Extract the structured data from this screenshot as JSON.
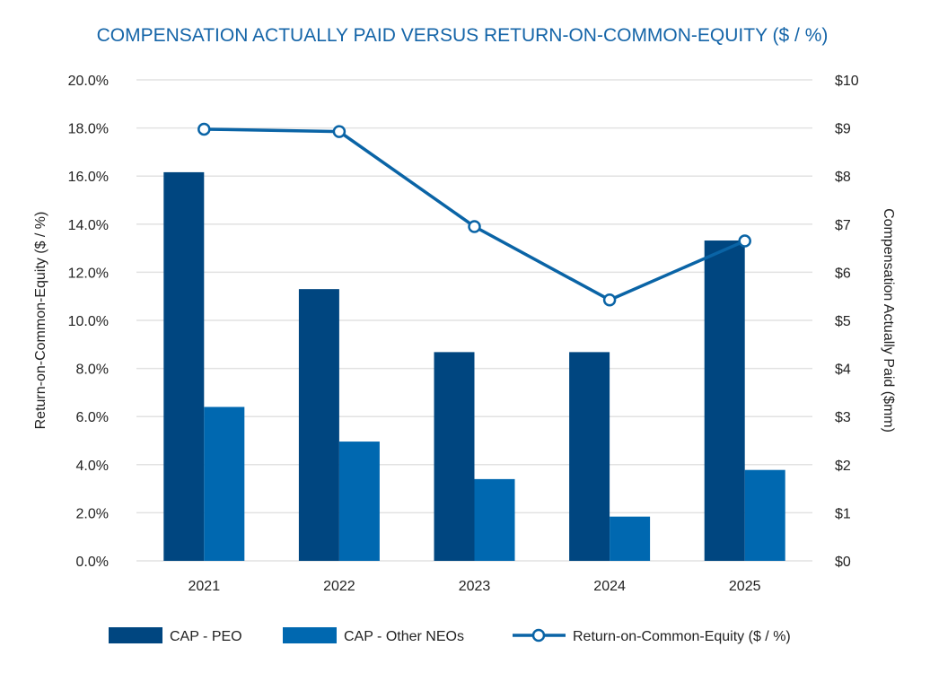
{
  "chart_data": {
    "type": "bar",
    "title": "COMPENSATION ACTUALLY PAID VERSUS RETURN-ON-COMMON-EQUITY ($ / %)",
    "categories": [
      "2021",
      "2022",
      "2023",
      "2024",
      "2025"
    ],
    "y_left": {
      "label": "Return-on-Common-Equity ($ / %)",
      "range": [
        0,
        20
      ],
      "ticks": [
        "0.0%",
        "2.0%",
        "4.0%",
        "6.0%",
        "8.0%",
        "10.0%",
        "12.0%",
        "14.0%",
        "16.0%",
        "18.0%",
        "20.0%"
      ]
    },
    "y_right": {
      "label": "Compensation Actually Paid ($mm)",
      "range": [
        0,
        10
      ],
      "ticks": [
        "$0",
        "$1",
        "$2",
        "$3",
        "$4",
        "$5",
        "$6",
        "$7",
        "$8",
        "$9",
        "$10"
      ]
    },
    "series": [
      {
        "name": "CAP - PEO",
        "type": "bar",
        "axis": "right",
        "color": "#004680",
        "values": [
          8.08,
          5.65,
          4.34,
          4.34,
          6.66
        ]
      },
      {
        "name": "CAP - Other NEOs",
        "type": "bar",
        "axis": "right",
        "color": "#0068b0",
        "values": [
          3.2,
          2.48,
          1.7,
          0.92,
          1.89
        ]
      },
      {
        "name": "Return-on-Common-Equity ($ / %)",
        "type": "line",
        "axis": "left",
        "color": "#0a64a6",
        "values": [
          17.95,
          17.85,
          13.9,
          10.85,
          13.3
        ]
      }
    ],
    "grid": true,
    "legend_position": "bottom"
  }
}
